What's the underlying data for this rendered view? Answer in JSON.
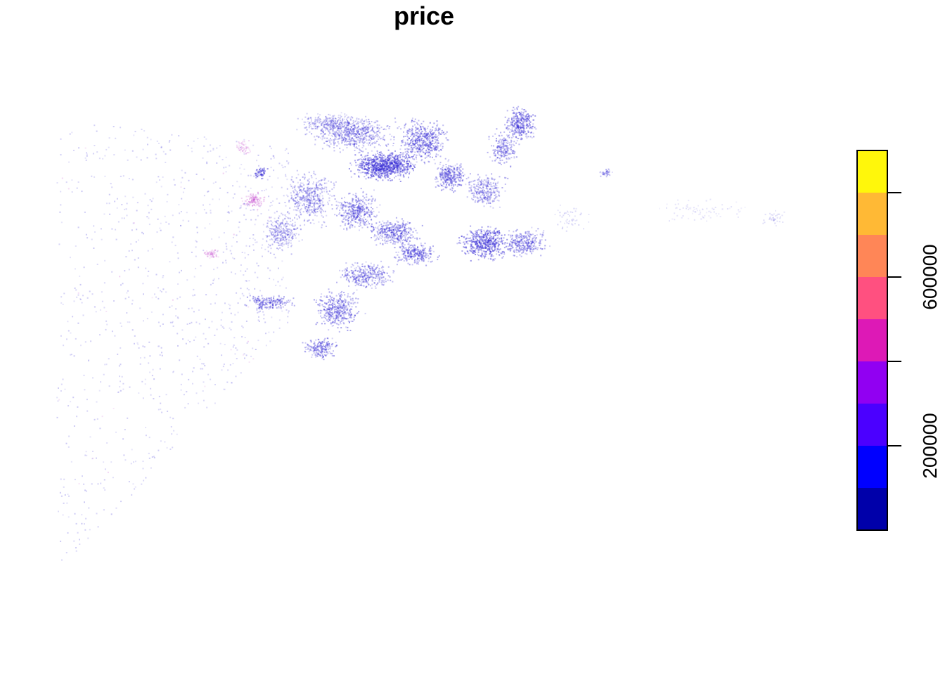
{
  "title": "price",
  "legend": {
    "title": "",
    "tick_labels": [
      "200000",
      "600000"
    ],
    "tick_values": [
      200000,
      400000,
      600000,
      800000
    ],
    "range": [
      0,
      900000
    ],
    "bin_width": 100000,
    "colors": [
      "#0000AA",
      "#0000FF",
      "#4B00FF",
      "#9100F2",
      "#DD19B6",
      "#FF5080",
      "#FF8657",
      "#FFB935",
      "#FFF70B"
    ]
  },
  "map": {
    "point_color": "#3a2fd6",
    "high_value_color": "#c64fd0"
  }
}
